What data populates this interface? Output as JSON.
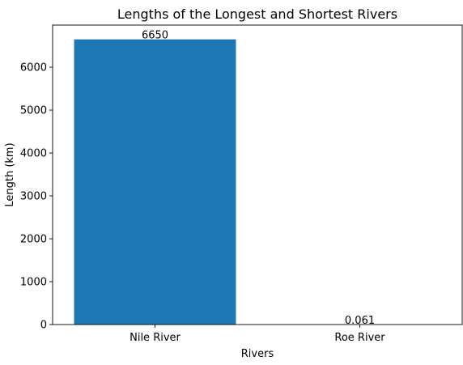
{
  "chart_data": {
    "type": "bar",
    "title": "Lengths of the Longest and Shortest Rivers",
    "xlabel": "Rivers",
    "ylabel": "Length (km)",
    "categories": [
      "Nile River",
      "Roe River"
    ],
    "values": [
      6650,
      0.061
    ],
    "value_labels": [
      "6650",
      "0.061"
    ],
    "ylim": [
      0,
      6982.5
    ],
    "yticks": [
      0,
      1000,
      2000,
      3000,
      4000,
      5000,
      6000
    ],
    "bar_color": "#1f77b4",
    "grid": false,
    "legend": "none"
  }
}
